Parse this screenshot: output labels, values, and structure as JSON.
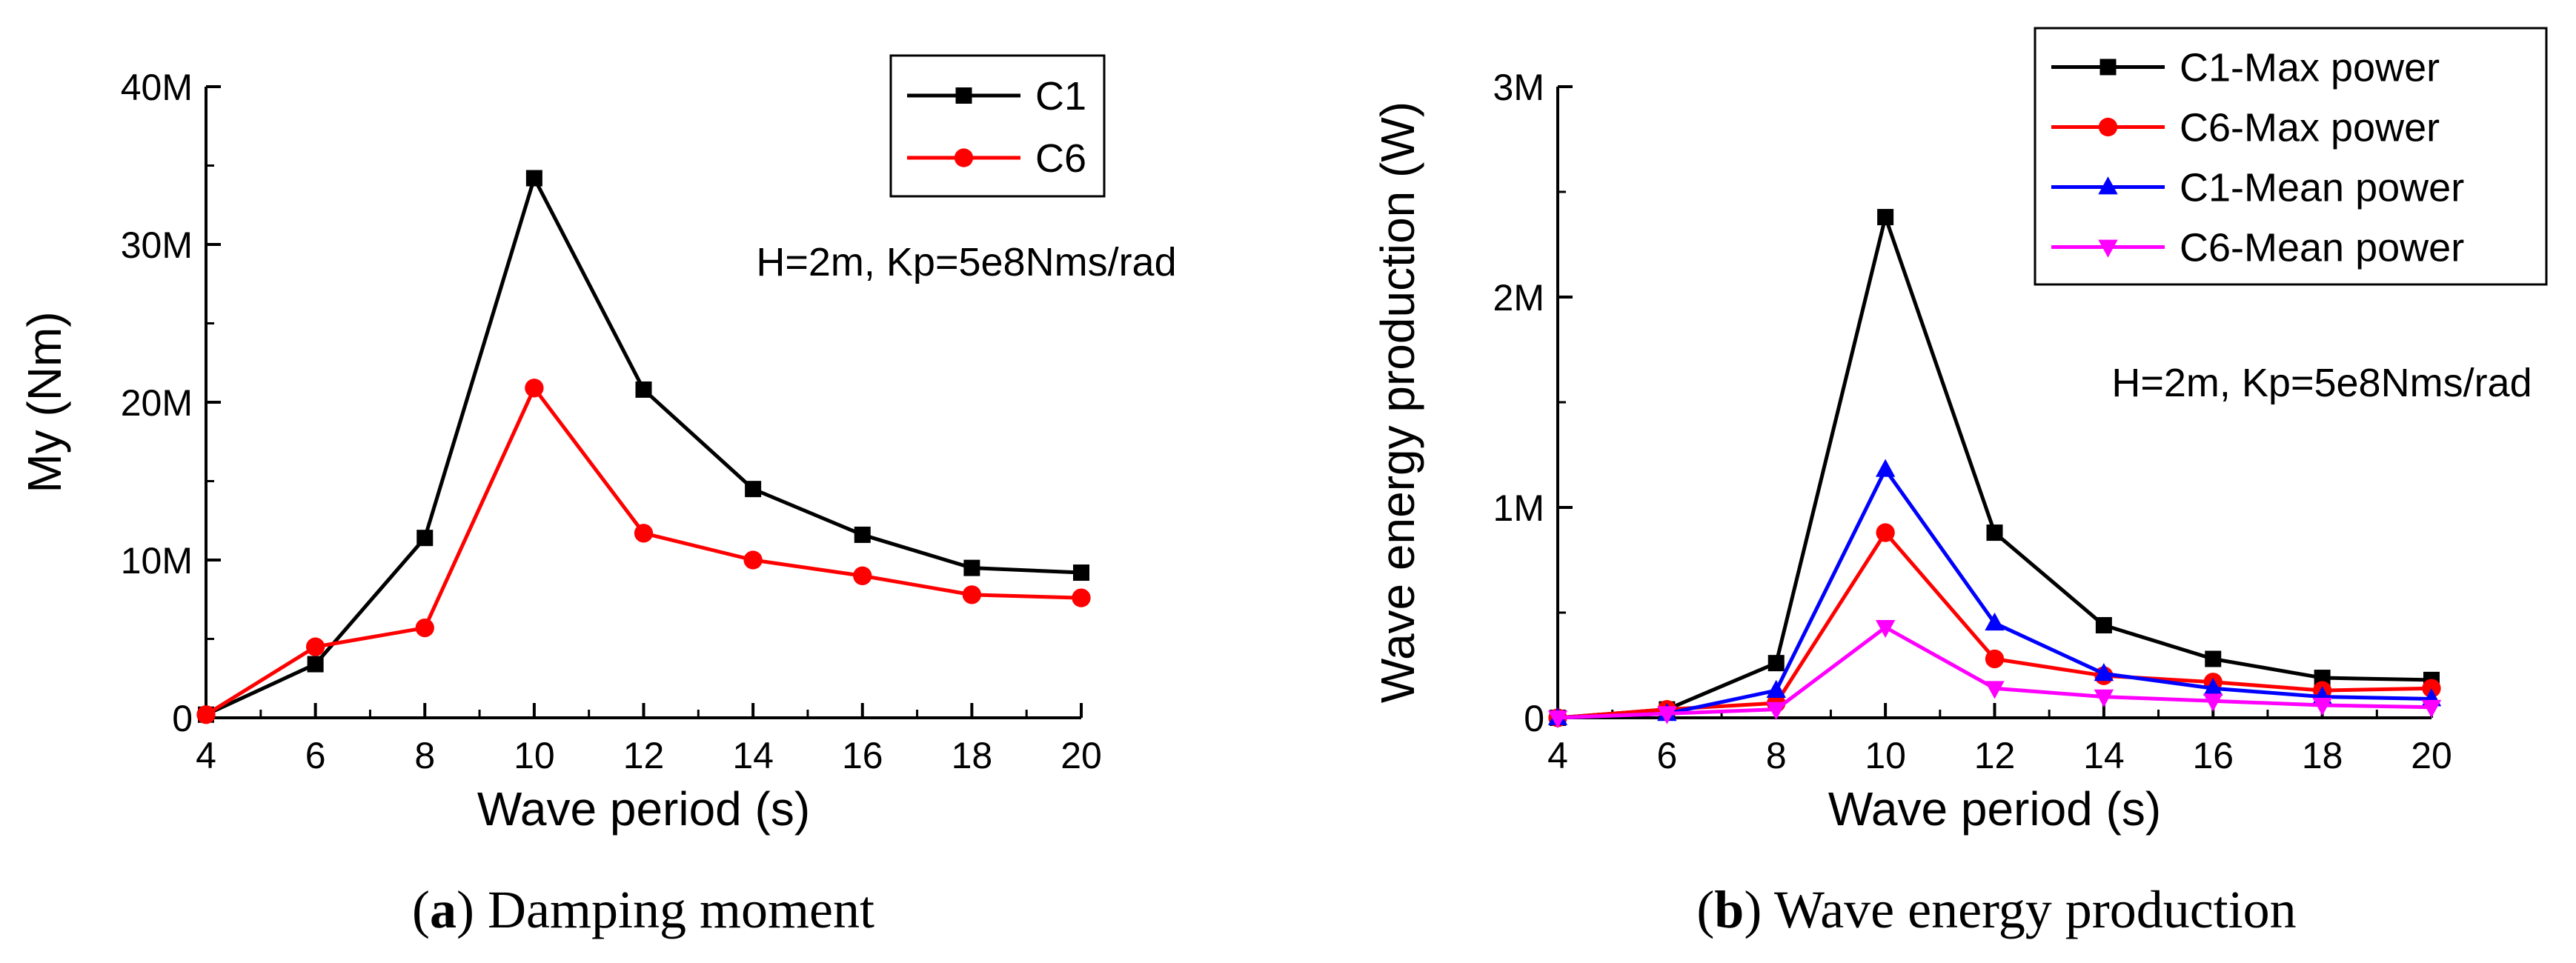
{
  "chart_data": [
    {
      "type": "line",
      "panel": "a",
      "caption_letter": "a",
      "caption_text": " Damping moment",
      "xlabel": "Wave period (s)",
      "ylabel": "My (Nm)",
      "xlim": [
        4,
        20
      ],
      "ylim": [
        0,
        40000000
      ],
      "xticks": [
        4,
        6,
        8,
        10,
        12,
        14,
        16,
        18,
        20
      ],
      "xtick_labels": [
        "4",
        "6",
        "8",
        "10",
        "12",
        "14",
        "16",
        "18",
        "20"
      ],
      "yticks": [
        0,
        10000000,
        20000000,
        30000000,
        40000000
      ],
      "ytick_labels": [
        "0",
        "10M",
        "20M",
        "30M",
        "40M"
      ],
      "annotation": "H=2m, Kp=5e8Nms/rad",
      "legend_position": "top-right",
      "grid": false,
      "x": [
        4,
        6,
        8,
        10,
        12,
        14,
        16,
        18,
        20
      ],
      "series": [
        {
          "name": "C1",
          "color": "#000000",
          "marker": "square",
          "values": [
            200000,
            3400000,
            11400000,
            34200000,
            20800000,
            14500000,
            11600000,
            9500000,
            9200000
          ]
        },
        {
          "name": "C6",
          "color": "#ff0000",
          "marker": "circle",
          "values": [
            200000,
            4500000,
            5700000,
            20900000,
            11700000,
            10000000,
            9000000,
            7800000,
            7600000
          ]
        }
      ]
    },
    {
      "type": "line",
      "panel": "b",
      "caption_letter": "b",
      "caption_text": " Wave energy production",
      "xlabel": "Wave period (s)",
      "ylabel": "Wave energy production (W)",
      "xlim": [
        4,
        20
      ],
      "ylim": [
        0,
        3000000
      ],
      "xticks": [
        4,
        6,
        8,
        10,
        12,
        14,
        16,
        18,
        20
      ],
      "xtick_labels": [
        "4",
        "6",
        "8",
        "10",
        "12",
        "14",
        "16",
        "18",
        "20"
      ],
      "yticks": [
        0,
        1000000,
        2000000,
        3000000
      ],
      "ytick_labels": [
        "0",
        "1M",
        "2M",
        "3M"
      ],
      "annotation": "H=2m, Kp=5e8Nms/rad",
      "legend_position": "top-right",
      "grid": false,
      "x": [
        4,
        6,
        8,
        10,
        12,
        14,
        16,
        18,
        20
      ],
      "series": [
        {
          "name": "C1-Max power",
          "color": "#000000",
          "marker": "square",
          "values": [
            0,
            40000,
            260000,
            2380000,
            880000,
            440000,
            280000,
            190000,
            180000
          ]
        },
        {
          "name": "C6-Max power",
          "color": "#ff0000",
          "marker": "circle",
          "values": [
            0,
            40000,
            70000,
            880000,
            280000,
            200000,
            170000,
            130000,
            140000
          ]
        },
        {
          "name": "C1-Mean power",
          "color": "#0000ff",
          "marker": "triangle-up",
          "values": [
            0,
            20000,
            130000,
            1180000,
            450000,
            210000,
            140000,
            100000,
            90000
          ]
        },
        {
          "name": "C6-Mean power",
          "color": "#ff00ff",
          "marker": "triangle-down",
          "values": [
            0,
            20000,
            40000,
            430000,
            140000,
            100000,
            80000,
            60000,
            50000
          ]
        }
      ]
    }
  ]
}
